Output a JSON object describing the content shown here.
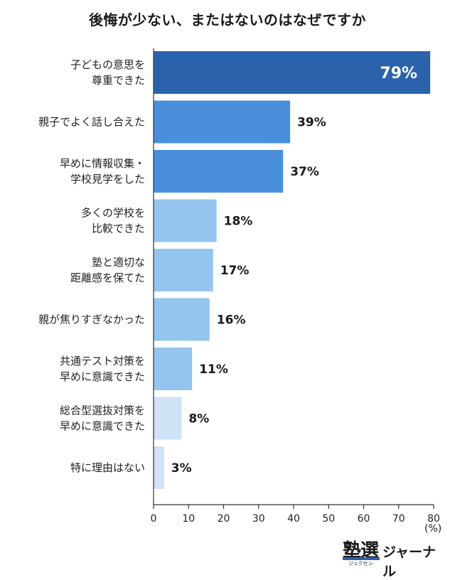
{
  "title": "後悔が少ない、またはないのはなぜですか",
  "unit_label": "(%)",
  "logo": {
    "kanji": "塾選",
    "small": "ジュクセン",
    "kana": "ジャーナル"
  },
  "chart_data": {
    "type": "bar",
    "orientation": "horizontal",
    "title": "後悔が少ない、またはないのはなぜですか",
    "categories": [
      [
        "子どもの意思を",
        "尊重できた"
      ],
      [
        "親子でよく話し合えた"
      ],
      [
        "早めに情報収集・",
        "学校見学をした"
      ],
      [
        "多くの学校を",
        "比較できた"
      ],
      [
        "塾と適切な",
        "距離感を保てた"
      ],
      [
        "親が焦りすぎなかった"
      ],
      [
        "共通テスト対策を",
        "早めに意識できた"
      ],
      [
        "総合型選抜対策を",
        "早めに意識できた"
      ],
      [
        "特に理由はない"
      ]
    ],
    "values": [
      79,
      39,
      37,
      18,
      17,
      16,
      11,
      8,
      3
    ],
    "value_labels": [
      "79%",
      "39%",
      "37%",
      "18%",
      "17%",
      "16%",
      "11%",
      "8%",
      "3%"
    ],
    "bar_colors": [
      "#2b62ac",
      "#4a8fdb",
      "#4a8fdb",
      "#93c5ee",
      "#93c5ee",
      "#93c5ee",
      "#93c5ee",
      "#cfe2f6",
      "#cfe2f6"
    ],
    "xlim": [
      0,
      80
    ],
    "xticks": [
      0,
      10,
      20,
      30,
      40,
      50,
      60,
      70,
      80
    ],
    "xlabel": "",
    "ylabel": "",
    "grid": false,
    "legend": "none"
  }
}
